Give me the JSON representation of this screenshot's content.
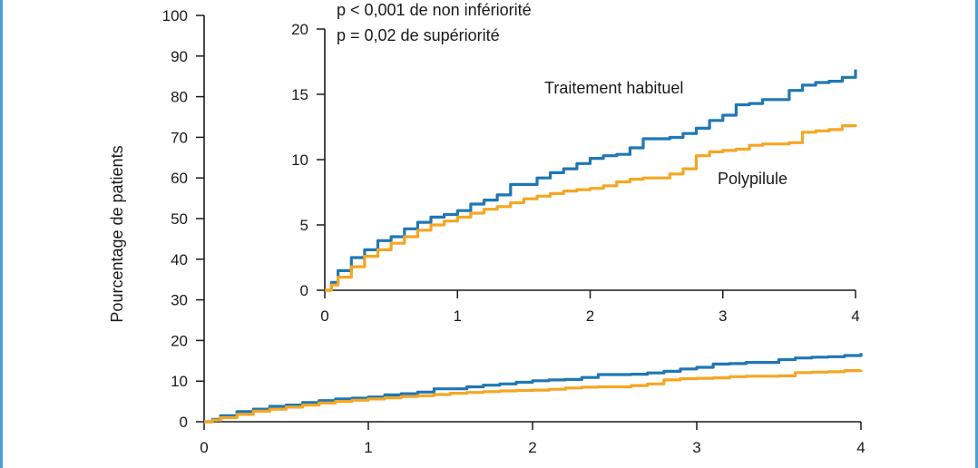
{
  "colors": {
    "traitement": "#1f77b4",
    "polypilule": "#f5a623",
    "frame": "#4a9fd8"
  },
  "chart_data": [
    {
      "type": "line",
      "ylabel": "Pourcentage de patients",
      "xlim": [
        0,
        4
      ],
      "ylim": [
        0,
        100
      ],
      "xticks": [
        "0",
        "1",
        "2",
        "3",
        "4"
      ],
      "yticks": [
        "0",
        "10",
        "20",
        "30",
        "40",
        "50",
        "60",
        "70",
        "80",
        "90",
        "100"
      ],
      "series": [
        {
          "name": "Traitement habituel",
          "color": "#1f77b4",
          "x": [
            0,
            0.05,
            0.1,
            0.2,
            0.3,
            0.4,
            0.5,
            0.6,
            0.7,
            0.8,
            0.9,
            1.0,
            1.1,
            1.2,
            1.3,
            1.4,
            1.5,
            1.6,
            1.7,
            1.8,
            1.9,
            2.0,
            2.1,
            2.2,
            2.3,
            2.4,
            2.5,
            2.6,
            2.7,
            2.8,
            2.9,
            3.0,
            3.1,
            3.2,
            3.3,
            3.4,
            3.5,
            3.6,
            3.7,
            3.8,
            3.9,
            4.0
          ],
          "y": [
            0,
            0.6,
            1.5,
            2.5,
            3.1,
            3.8,
            4.1,
            4.7,
            5.2,
            5.6,
            5.8,
            6.1,
            6.6,
            6.9,
            7.3,
            8.1,
            8.1,
            8.6,
            9.0,
            9.3,
            9.7,
            10.1,
            10.3,
            10.4,
            10.9,
            11.6,
            11.6,
            11.7,
            12.0,
            12.4,
            13.0,
            13.4,
            14.2,
            14.3,
            14.6,
            14.6,
            15.3,
            15.7,
            15.9,
            16.0,
            16.3,
            16.9
          ]
        },
        {
          "name": "Polypilule",
          "color": "#f5a623",
          "x": [
            0,
            0.05,
            0.1,
            0.2,
            0.3,
            0.4,
            0.5,
            0.6,
            0.7,
            0.8,
            0.9,
            1.0,
            1.1,
            1.2,
            1.3,
            1.4,
            1.5,
            1.6,
            1.7,
            1.8,
            1.9,
            2.0,
            2.1,
            2.2,
            2.3,
            2.4,
            2.5,
            2.6,
            2.7,
            2.8,
            2.9,
            3.0,
            3.1,
            3.2,
            3.3,
            3.4,
            3.5,
            3.6,
            3.7,
            3.8,
            3.9,
            4.0
          ],
          "y": [
            0,
            0.4,
            1.0,
            1.8,
            2.6,
            3.1,
            3.6,
            4.1,
            4.6,
            5.0,
            5.3,
            5.6,
            5.9,
            6.2,
            6.4,
            6.7,
            7.0,
            7.2,
            7.4,
            7.6,
            7.7,
            7.8,
            8.0,
            8.3,
            8.5,
            8.6,
            8.6,
            8.9,
            9.3,
            10.3,
            10.6,
            10.7,
            10.8,
            11.1,
            11.2,
            11.2,
            11.3,
            12.1,
            12.2,
            12.3,
            12.6,
            12.7
          ]
        }
      ]
    },
    {
      "type": "line",
      "xlim": [
        0,
        4
      ],
      "ylim": [
        0,
        20
      ],
      "xticks": [
        "0",
        "1",
        "2",
        "3",
        "4"
      ],
      "yticks": [
        "0",
        "5",
        "10",
        "15",
        "20"
      ],
      "annotations": [
        "p < 0,001 de non infériorité",
        "p = 0,02 de supériorité"
      ],
      "series_labels": [
        "Traitement habituel",
        "Polypilule"
      ],
      "series": [
        {
          "name": "Traitement habituel",
          "color": "#1f77b4",
          "x": [
            0,
            0.05,
            0.1,
            0.2,
            0.3,
            0.4,
            0.5,
            0.6,
            0.7,
            0.8,
            0.9,
            1.0,
            1.1,
            1.2,
            1.3,
            1.4,
            1.5,
            1.6,
            1.7,
            1.8,
            1.9,
            2.0,
            2.1,
            2.2,
            2.3,
            2.4,
            2.5,
            2.6,
            2.7,
            2.8,
            2.9,
            3.0,
            3.1,
            3.2,
            3.3,
            3.4,
            3.5,
            3.6,
            3.7,
            3.8,
            3.9,
            4.0
          ],
          "y": [
            0,
            0.6,
            1.5,
            2.5,
            3.1,
            3.8,
            4.1,
            4.7,
            5.2,
            5.6,
            5.8,
            6.1,
            6.6,
            6.9,
            7.3,
            8.1,
            8.1,
            8.6,
            9.0,
            9.3,
            9.7,
            10.1,
            10.3,
            10.4,
            10.9,
            11.6,
            11.6,
            11.7,
            12.0,
            12.4,
            13.0,
            13.4,
            14.2,
            14.3,
            14.6,
            14.6,
            15.3,
            15.7,
            15.9,
            16.0,
            16.3,
            16.9
          ]
        },
        {
          "name": "Polypilule",
          "color": "#f5a623",
          "x": [
            0,
            0.05,
            0.1,
            0.2,
            0.3,
            0.4,
            0.5,
            0.6,
            0.7,
            0.8,
            0.9,
            1.0,
            1.1,
            1.2,
            1.3,
            1.4,
            1.5,
            1.6,
            1.7,
            1.8,
            1.9,
            2.0,
            2.1,
            2.2,
            2.3,
            2.4,
            2.5,
            2.6,
            2.7,
            2.8,
            2.9,
            3.0,
            3.1,
            3.2,
            3.3,
            3.4,
            3.5,
            3.6,
            3.7,
            3.8,
            3.9,
            4.0
          ],
          "y": [
            0,
            0.4,
            1.0,
            1.8,
            2.6,
            3.1,
            3.6,
            4.1,
            4.6,
            5.0,
            5.3,
            5.6,
            5.9,
            6.2,
            6.4,
            6.7,
            7.0,
            7.2,
            7.4,
            7.6,
            7.7,
            7.8,
            8.0,
            8.3,
            8.5,
            8.6,
            8.6,
            8.9,
            9.3,
            10.3,
            10.6,
            10.7,
            10.8,
            11.1,
            11.2,
            11.2,
            11.3,
            12.1,
            12.2,
            12.3,
            12.6,
            12.7
          ]
        }
      ]
    }
  ]
}
